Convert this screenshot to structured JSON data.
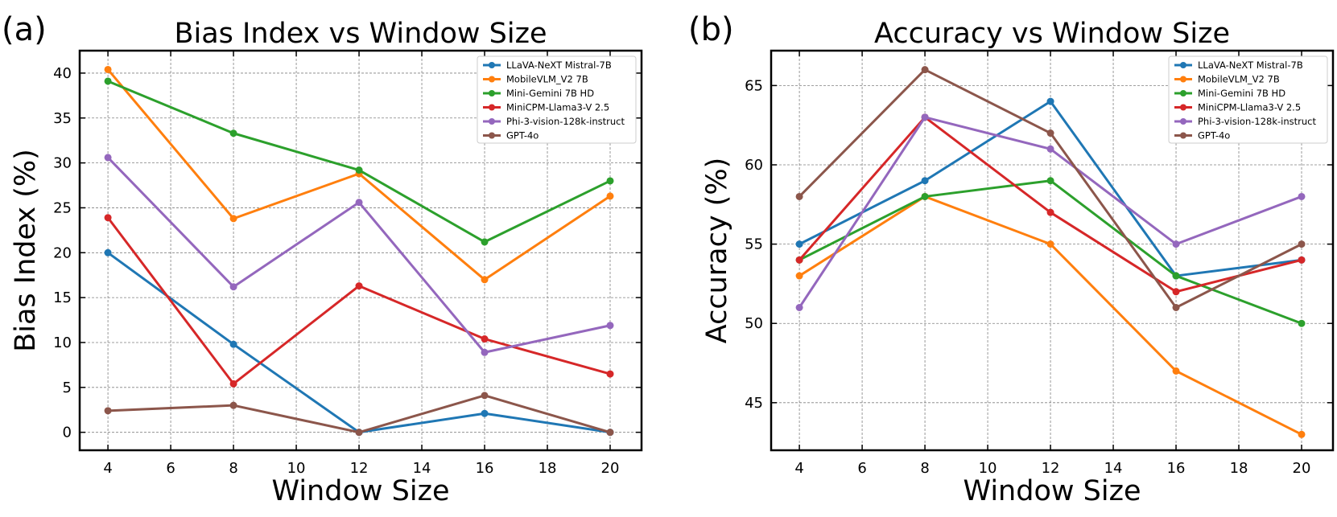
{
  "figure": {
    "panels": [
      {
        "letter": "(a)"
      },
      {
        "letter": "(b)"
      }
    ]
  },
  "chart_data": [
    {
      "type": "line",
      "title": "Bias Index vs Window Size",
      "xlabel": "Window Size",
      "ylabel": "Bias Index (%)",
      "xlim": [
        3.1,
        21.0
      ],
      "ylim": [
        -2.0,
        42.5
      ],
      "xticks": [
        4,
        6,
        8,
        10,
        12,
        14,
        16,
        18,
        20
      ],
      "yticks": [
        0,
        5,
        10,
        15,
        20,
        25,
        30,
        35,
        40
      ],
      "grid": true,
      "legend_position": "top-right",
      "x": [
        4,
        8,
        12,
        16,
        20
      ],
      "series": [
        {
          "name": "LLaVA-NeXT Mistral-7B",
          "color": "#1f77b4",
          "values": [
            20.0,
            9.8,
            0.0,
            2.1,
            0.0
          ]
        },
        {
          "name": "MobileVLM_V2 7B",
          "color": "#ff7f0e",
          "values": [
            40.4,
            23.8,
            28.8,
            17.0,
            26.3
          ]
        },
        {
          "name": "Mini-Gemini 7B HD",
          "color": "#2ca02c",
          "values": [
            39.1,
            33.3,
            29.2,
            21.2,
            28.0
          ]
        },
        {
          "name": "MiniCPM-Llama3-V 2.5",
          "color": "#d62728",
          "values": [
            23.9,
            5.4,
            16.3,
            10.4,
            6.5
          ]
        },
        {
          "name": "Phi-3-vision-128k-instruct",
          "color": "#9467bd",
          "values": [
            30.6,
            16.2,
            25.6,
            8.9,
            11.9
          ]
        },
        {
          "name": "GPT-4o",
          "color": "#8c564b",
          "values": [
            2.4,
            3.0,
            0.0,
            4.1,
            0.0
          ]
        }
      ]
    },
    {
      "type": "line",
      "title": "Accuracy vs Window Size",
      "xlabel": "Window Size",
      "ylabel": "Accuracy (%)",
      "xlim": [
        3.1,
        21.0
      ],
      "ylim": [
        42.0,
        67.2
      ],
      "xticks": [
        4,
        6,
        8,
        10,
        12,
        14,
        16,
        18,
        20
      ],
      "yticks": [
        45,
        50,
        55,
        60,
        65
      ],
      "grid": true,
      "legend_position": "top-right",
      "x": [
        4,
        8,
        12,
        16,
        20
      ],
      "series": [
        {
          "name": "LLaVA-NeXT Mistral-7B",
          "color": "#1f77b4",
          "values": [
            55,
            59,
            64,
            53,
            54
          ]
        },
        {
          "name": "MobileVLM_V2 7B",
          "color": "#ff7f0e",
          "values": [
            53,
            58,
            55,
            47,
            43
          ]
        },
        {
          "name": "Mini-Gemini 7B HD",
          "color": "#2ca02c",
          "values": [
            54,
            58,
            59,
            53,
            50
          ]
        },
        {
          "name": "MiniCPM-Llama3-V 2.5",
          "color": "#d62728",
          "values": [
            54,
            63,
            57,
            52,
            54
          ]
        },
        {
          "name": "Phi-3-vision-128k-instruct",
          "color": "#9467bd",
          "values": [
            51,
            63,
            61,
            55,
            58
          ]
        },
        {
          "name": "GPT-4o",
          "color": "#8c564b",
          "values": [
            58,
            66,
            62,
            51,
            55
          ]
        }
      ]
    }
  ]
}
